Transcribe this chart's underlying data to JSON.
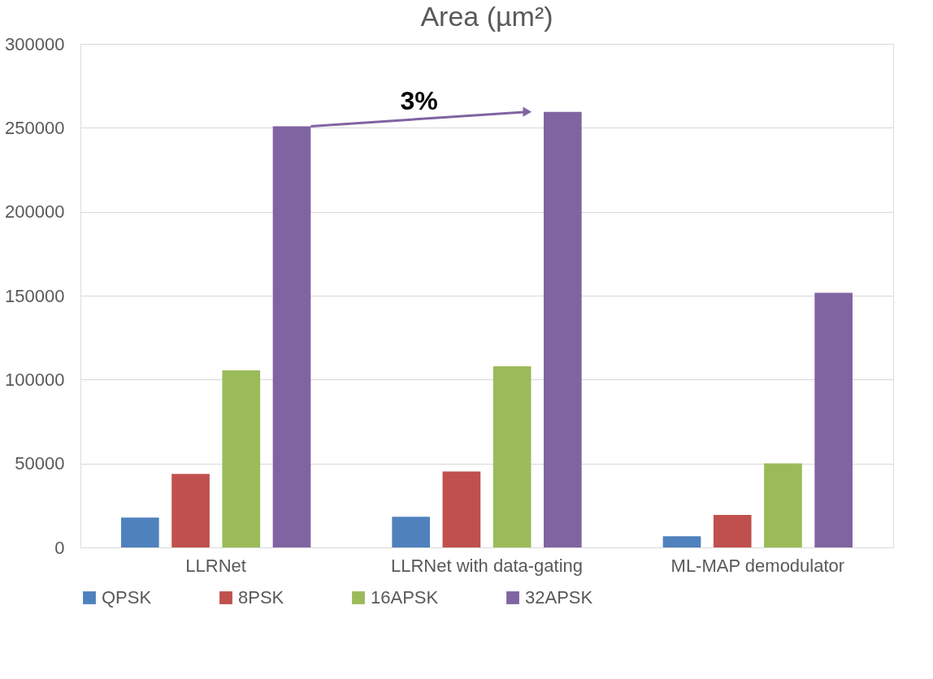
{
  "chart_data": {
    "type": "bar",
    "title": "Area (µm²)",
    "categories": [
      "LLRNet",
      "LLRNet with data-gating",
      "ML-MAP demodulator"
    ],
    "series": [
      {
        "name": "QPSK",
        "color": "#4f81bd",
        "values": [
          17800,
          18300,
          6700
        ]
      },
      {
        "name": "8PSK",
        "color": "#c0504d",
        "values": [
          43800,
          45300,
          19300
        ]
      },
      {
        "name": "16APSK",
        "color": "#9bbb59",
        "values": [
          105500,
          107900,
          50100
        ]
      },
      {
        "name": "32APSK",
        "color": "#8064a2",
        "values": [
          250900,
          259500,
          151700
        ]
      }
    ],
    "ylim": [
      0,
      300000
    ],
    "yticks": [
      0,
      50000,
      100000,
      150000,
      200000,
      250000,
      300000
    ],
    "grid": "y",
    "legend": "bottom",
    "annotations": [
      "3%"
    ]
  }
}
